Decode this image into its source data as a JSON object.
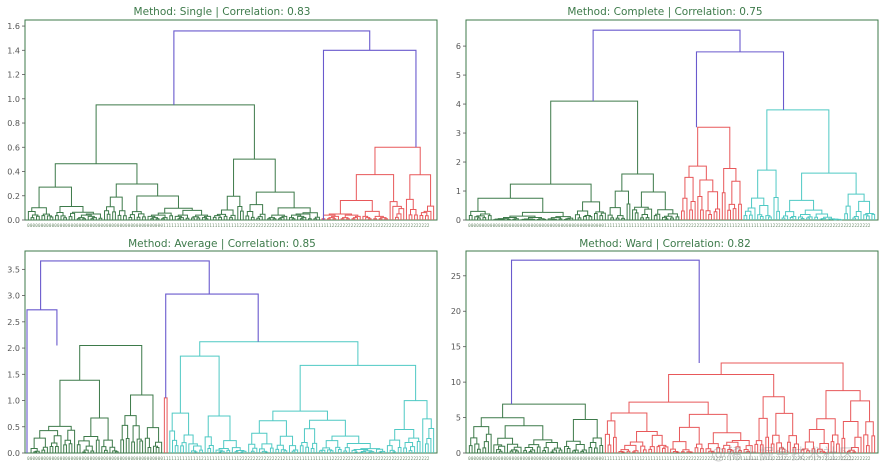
{
  "colors": {
    "frame": "#3d7a4a",
    "title": "#3d7a4a",
    "above_threshold": "#6a5acd",
    "cluster_green": "#3d7a4a",
    "cluster_red": "#e8585a",
    "cluster_cyan": "#4fc9c4"
  },
  "watermark": "@稀土掘金技术社区",
  "chart_data": [
    {
      "type": "dendrogram",
      "title": "Method: Single | Correlation: 0.83",
      "method": "Single",
      "correlation": 0.83,
      "ylim": [
        0,
        1.65
      ],
      "yticks": [
        0.0,
        0.2,
        0.4,
        0.6,
        0.8,
        1.0,
        1.2,
        1.4,
        1.6
      ],
      "ytick_labels": [
        "0.0",
        "0.2",
        "0.4",
        "0.6",
        "0.8",
        "1.0",
        "1.2",
        "1.4",
        "1.6"
      ],
      "n_leaves": 150,
      "leaf_labels_pattern": "0000000000000000000000000000000000000000000000000011111111111111211111111111112222222222222221211112111111111111222222222222222122222222222222222222",
      "clusters": [
        {
          "color": "green",
          "leaf_range": [
            0,
            108
          ],
          "height": 0.95
        },
        {
          "color": "red",
          "leaf_range": [
            108,
            150
          ],
          "height": 0.6
        }
      ],
      "top_links": [
        {
          "x": [
            54,
            54,
            126,
            126
          ],
          "y": [
            0.95,
            1.56,
            1.56,
            1.4
          ],
          "color": "blue"
        },
        {
          "x": [
            109,
            109,
            143,
            143
          ],
          "y": [
            0,
            1.4,
            1.4,
            0.6
          ],
          "color": "blue"
        }
      ]
    },
    {
      "type": "dendrogram",
      "title": "Method: Complete | Correlation: 0.75",
      "method": "Complete",
      "correlation": 0.75,
      "ylim": [
        0,
        6.9
      ],
      "yticks": [
        0,
        1,
        2,
        3,
        4,
        5,
        6
      ],
      "ytick_labels": [
        "0",
        "1",
        "2",
        "3",
        "4",
        "5",
        "6"
      ],
      "n_leaves": 150,
      "leaf_labels_pattern": "0000000000000000000000000000000000000000000000000011111111111111211111111111112222222222222221211112111111111111222222222222222122222222222222222222",
      "clusters": [
        {
          "color": "green",
          "leaf_range": [
            0,
            78
          ],
          "height": 4.1
        },
        {
          "color": "red",
          "leaf_range": [
            78,
            101
          ],
          "height": 3.2
        },
        {
          "color": "cyan",
          "leaf_range": [
            101,
            150
          ],
          "height": 3.8
        }
      ],
      "top_links": [
        {
          "x": [
            46,
            46,
            100,
            100
          ],
          "y": [
            4.1,
            6.55,
            6.55,
            5.8
          ],
          "color": "blue"
        },
        {
          "x": [
            84,
            84,
            116,
            116
          ],
          "y": [
            3.2,
            5.8,
            5.8,
            3.8
          ],
          "color": "blue"
        }
      ]
    },
    {
      "type": "dendrogram",
      "title": "Method: Average | Correlation: 0.85",
      "method": "Average",
      "correlation": 0.85,
      "ylim": [
        0,
        3.85
      ],
      "yticks": [
        0.0,
        0.5,
        1.0,
        1.5,
        2.0,
        2.5,
        3.0,
        3.5
      ],
      "ytick_labels": [
        "0.0",
        "0.5",
        "1.0",
        "1.5",
        "2.0",
        "2.5",
        "3.0",
        "3.5"
      ],
      "n_leaves": 150,
      "leaf_labels_pattern": "0000000000000000000000000000000000000000000000000011111111111111211111111111112222222222222221211112111111111111222222222222222122222222222222222222",
      "clusters": [
        {
          "color": "green",
          "leaf_range": [
            1,
            50
          ],
          "height": 2.05
        },
        {
          "color": "red",
          "leaf_range": [
            50,
            52
          ],
          "height": 1.05
        },
        {
          "color": "cyan",
          "leaf_range": [
            52,
            150
          ],
          "height": 2.12
        }
      ],
      "top_links": [
        {
          "x": [
            0,
            0,
            11,
            11
          ],
          "y": [
            0,
            2.73,
            2.73,
            2.05
          ],
          "color": "blue"
        },
        {
          "x": [
            5,
            5,
            67,
            67
          ],
          "y": [
            2.73,
            3.66,
            3.66,
            3.03
          ],
          "color": "blue"
        },
        {
          "x": [
            51,
            51,
            85,
            85
          ],
          "y": [
            1.05,
            3.03,
            3.03,
            2.12
          ],
          "color": "blue"
        }
      ]
    },
    {
      "type": "dendrogram",
      "title": "Method: Ward | Correlation: 0.82",
      "method": "Ward",
      "correlation": 0.82,
      "ylim": [
        0,
        28.5
      ],
      "yticks": [
        0,
        5,
        10,
        15,
        20,
        25
      ],
      "ytick_labels": [
        "0",
        "5",
        "10",
        "15",
        "20",
        "25"
      ],
      "n_leaves": 150,
      "leaf_labels_pattern": "0000000000000000000000000000000000000000000000000011111111111111211111111111112222222222222221211112111111111111222222222222222122222222222222222222",
      "clusters": [
        {
          "color": "green",
          "leaf_range": [
            0,
            50
          ],
          "height": 6.9
        },
        {
          "color": "red",
          "leaf_range": [
            50,
            150
          ],
          "height": 12.7
        }
      ],
      "top_links": [
        {
          "x": [
            16,
            16,
            85,
            85
          ],
          "y": [
            6.9,
            27.2,
            27.2,
            12.7
          ],
          "color": "blue"
        }
      ]
    }
  ]
}
